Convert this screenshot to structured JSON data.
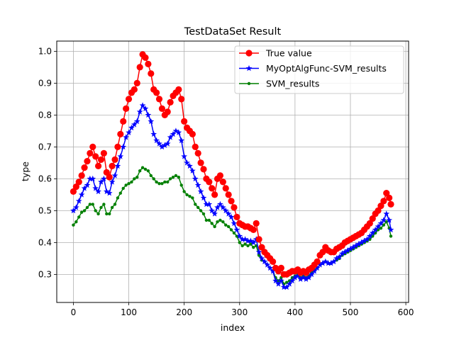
{
  "chart_data": {
    "type": "line",
    "title": "TestDataSet Result",
    "xlabel": "index",
    "ylabel": "type",
    "xlim": [
      -30,
      605
    ],
    "ylim": [
      0.212,
      1.032
    ],
    "xticks": [
      0,
      100,
      200,
      300,
      400,
      500,
      600
    ],
    "yticks": [
      0.3,
      0.4,
      0.5,
      0.6,
      0.7,
      0.8,
      0.9,
      1.0
    ],
    "grid": true,
    "legend_position": "top-right",
    "series": [
      {
        "name": "True value",
        "color": "#ff0000",
        "marker": "circle",
        "x": [
          0,
          5,
          10,
          15,
          20,
          25,
          30,
          35,
          40,
          45,
          50,
          55,
          60,
          65,
          70,
          75,
          80,
          85,
          90,
          95,
          100,
          105,
          110,
          115,
          120,
          125,
          130,
          135,
          140,
          145,
          150,
          155,
          160,
          165,
          170,
          175,
          180,
          185,
          190,
          195,
          200,
          205,
          210,
          215,
          220,
          225,
          230,
          235,
          240,
          245,
          250,
          255,
          260,
          265,
          270,
          275,
          280,
          285,
          290,
          295,
          300,
          305,
          310,
          315,
          320,
          325,
          330,
          335,
          340,
          345,
          350,
          355,
          360,
          365,
          370,
          375,
          380,
          385,
          390,
          395,
          400,
          405,
          410,
          415,
          420,
          425,
          430,
          435,
          440,
          445,
          450,
          455,
          460,
          465,
          470,
          475,
          480,
          485,
          490,
          495,
          500,
          505,
          510,
          515,
          520,
          525,
          530,
          535,
          540,
          545,
          550,
          555,
          560,
          565,
          570,
          573
        ],
        "values": [
          0.56,
          0.575,
          0.59,
          0.61,
          0.635,
          0.655,
          0.68,
          0.7,
          0.67,
          0.64,
          0.66,
          0.68,
          0.62,
          0.605,
          0.64,
          0.66,
          0.7,
          0.74,
          0.78,
          0.82,
          0.85,
          0.87,
          0.88,
          0.9,
          0.95,
          0.99,
          0.98,
          0.96,
          0.93,
          0.88,
          0.87,
          0.85,
          0.82,
          0.8,
          0.81,
          0.84,
          0.86,
          0.87,
          0.88,
          0.85,
          0.78,
          0.76,
          0.75,
          0.74,
          0.7,
          0.68,
          0.65,
          0.63,
          0.6,
          0.59,
          0.57,
          0.55,
          0.6,
          0.61,
          0.59,
          0.57,
          0.55,
          0.53,
          0.51,
          0.48,
          0.46,
          0.455,
          0.45,
          0.45,
          0.445,
          0.44,
          0.46,
          0.41,
          0.385,
          0.37,
          0.36,
          0.35,
          0.34,
          0.32,
          0.31,
          0.32,
          0.3,
          0.3,
          0.305,
          0.31,
          0.31,
          0.315,
          0.305,
          0.31,
          0.305,
          0.315,
          0.32,
          0.33,
          0.34,
          0.36,
          0.37,
          0.385,
          0.375,
          0.37,
          0.37,
          0.38,
          0.385,
          0.39,
          0.4,
          0.405,
          0.41,
          0.415,
          0.42,
          0.425,
          0.43,
          0.44,
          0.45,
          0.46,
          0.475,
          0.49,
          0.5,
          0.515,
          0.53,
          0.555,
          0.54,
          0.52
        ]
      },
      {
        "name": "MyOptAlgFunc-SVM_results",
        "color": "#0000ff",
        "marker": "star",
        "x": [
          0,
          5,
          10,
          15,
          20,
          25,
          30,
          35,
          40,
          45,
          50,
          55,
          60,
          65,
          70,
          75,
          80,
          85,
          90,
          95,
          100,
          105,
          110,
          115,
          120,
          125,
          130,
          135,
          140,
          145,
          150,
          155,
          160,
          165,
          170,
          175,
          180,
          185,
          190,
          195,
          200,
          205,
          210,
          215,
          220,
          225,
          230,
          235,
          240,
          245,
          250,
          255,
          260,
          265,
          270,
          275,
          280,
          285,
          290,
          295,
          300,
          305,
          310,
          315,
          320,
          325,
          330,
          335,
          340,
          345,
          350,
          355,
          360,
          365,
          370,
          375,
          380,
          385,
          390,
          395,
          400,
          405,
          410,
          415,
          420,
          425,
          430,
          435,
          440,
          445,
          450,
          455,
          460,
          465,
          470,
          475,
          480,
          485,
          490,
          495,
          500,
          505,
          510,
          515,
          520,
          525,
          530,
          535,
          540,
          545,
          550,
          555,
          560,
          565,
          570,
          573
        ],
        "values": [
          0.5,
          0.51,
          0.53,
          0.55,
          0.57,
          0.58,
          0.6,
          0.6,
          0.57,
          0.56,
          0.59,
          0.6,
          0.56,
          0.555,
          0.59,
          0.61,
          0.64,
          0.67,
          0.7,
          0.73,
          0.745,
          0.76,
          0.77,
          0.78,
          0.81,
          0.83,
          0.82,
          0.8,
          0.78,
          0.74,
          0.72,
          0.71,
          0.7,
          0.705,
          0.71,
          0.73,
          0.74,
          0.75,
          0.745,
          0.72,
          0.67,
          0.65,
          0.64,
          0.625,
          0.6,
          0.58,
          0.56,
          0.54,
          0.52,
          0.52,
          0.5,
          0.49,
          0.51,
          0.52,
          0.51,
          0.5,
          0.49,
          0.48,
          0.46,
          0.44,
          0.42,
          0.41,
          0.41,
          0.405,
          0.405,
          0.4,
          0.41,
          0.37,
          0.35,
          0.34,
          0.33,
          0.32,
          0.31,
          0.28,
          0.27,
          0.28,
          0.26,
          0.26,
          0.27,
          0.28,
          0.29,
          0.295,
          0.285,
          0.29,
          0.285,
          0.29,
          0.3,
          0.31,
          0.32,
          0.33,
          0.335,
          0.34,
          0.335,
          0.335,
          0.34,
          0.35,
          0.355,
          0.365,
          0.37,
          0.375,
          0.38,
          0.385,
          0.39,
          0.395,
          0.4,
          0.405,
          0.41,
          0.42,
          0.43,
          0.44,
          0.45,
          0.46,
          0.47,
          0.49,
          0.47,
          0.44
        ]
      },
      {
        "name": "SVM_results",
        "color": "#008000",
        "marker": "point",
        "x": [
          0,
          5,
          10,
          15,
          20,
          25,
          30,
          35,
          40,
          45,
          50,
          55,
          60,
          65,
          70,
          75,
          80,
          85,
          90,
          95,
          100,
          105,
          110,
          115,
          120,
          125,
          130,
          135,
          140,
          145,
          150,
          155,
          160,
          165,
          170,
          175,
          180,
          185,
          190,
          195,
          200,
          205,
          210,
          215,
          220,
          225,
          230,
          235,
          240,
          245,
          250,
          255,
          260,
          265,
          270,
          275,
          280,
          285,
          290,
          295,
          300,
          305,
          310,
          315,
          320,
          325,
          330,
          335,
          340,
          345,
          350,
          355,
          360,
          365,
          370,
          375,
          380,
          385,
          390,
          395,
          400,
          405,
          410,
          415,
          420,
          425,
          430,
          435,
          440,
          445,
          450,
          455,
          460,
          465,
          470,
          475,
          480,
          485,
          490,
          495,
          500,
          505,
          510,
          515,
          520,
          525,
          530,
          535,
          540,
          545,
          550,
          555,
          560,
          565,
          570,
          573
        ],
        "values": [
          0.455,
          0.465,
          0.48,
          0.495,
          0.5,
          0.51,
          0.52,
          0.52,
          0.5,
          0.49,
          0.51,
          0.52,
          0.49,
          0.49,
          0.51,
          0.52,
          0.54,
          0.555,
          0.57,
          0.58,
          0.585,
          0.59,
          0.6,
          0.605,
          0.625,
          0.635,
          0.63,
          0.625,
          0.61,
          0.6,
          0.59,
          0.585,
          0.585,
          0.59,
          0.59,
          0.6,
          0.605,
          0.61,
          0.605,
          0.58,
          0.56,
          0.55,
          0.545,
          0.54,
          0.52,
          0.51,
          0.5,
          0.49,
          0.47,
          0.47,
          0.46,
          0.45,
          0.465,
          0.47,
          0.465,
          0.455,
          0.45,
          0.44,
          0.43,
          0.42,
          0.4,
          0.39,
          0.395,
          0.39,
          0.395,
          0.385,
          0.39,
          0.36,
          0.345,
          0.34,
          0.33,
          0.32,
          0.31,
          0.29,
          0.28,
          0.29,
          0.27,
          0.275,
          0.28,
          0.29,
          0.295,
          0.3,
          0.29,
          0.295,
          0.29,
          0.295,
          0.305,
          0.315,
          0.32,
          0.33,
          0.335,
          0.34,
          0.335,
          0.335,
          0.34,
          0.345,
          0.35,
          0.36,
          0.365,
          0.37,
          0.375,
          0.38,
          0.385,
          0.39,
          0.395,
          0.4,
          0.405,
          0.41,
          0.42,
          0.43,
          0.44,
          0.445,
          0.455,
          0.465,
          0.445,
          0.42
        ]
      }
    ]
  }
}
